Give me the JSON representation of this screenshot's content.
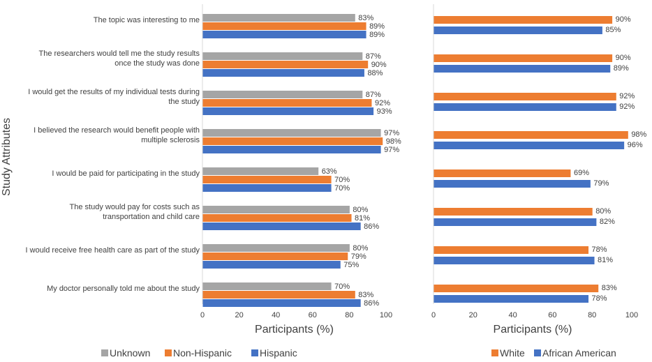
{
  "chart_data": {
    "type": "bar",
    "orientation": "horizontal",
    "ylabel": "Study Attributes",
    "colors": {
      "unknown": "#a5a5a5",
      "non_hispanic": "#ed7d31",
      "hispanic": "#4472c4",
      "white": "#ed7d31",
      "african_american": "#4472c4",
      "axis": "#d9d9d9",
      "text": "#404040"
    },
    "categories": [
      [
        "The topic was interesting to me"
      ],
      [
        "The researchers would tell me the study results",
        "once the study was done"
      ],
      [
        "I would get the results of my individual tests during",
        "the study"
      ],
      [
        "I believed the research would benefit people with",
        "multiple sclerosis"
      ],
      [
        "I would be paid for participating in the study"
      ],
      [
        "The study would pay for costs such as",
        "transportation and child care"
      ],
      [
        "I would receive free health care as part of the study"
      ],
      [
        "My doctor personally told me about the study"
      ]
    ],
    "panels": [
      {
        "xlabel": "Participants (%)",
        "xlim": [
          0,
          100
        ],
        "xticks": [
          "0",
          "20",
          "40",
          "60",
          "80",
          "100"
        ],
        "series": [
          {
            "name": "Unknown",
            "color_key": "unknown",
            "values": [
              83,
              87,
              87,
              97,
              63,
              80,
              80,
              70
            ],
            "labels": [
              "83%",
              "87%",
              "87%",
              "97%",
              "63%",
              "80%",
              "80%",
              "70%"
            ]
          },
          {
            "name": "Non-Hispanic",
            "color_key": "non_hispanic",
            "values": [
              89,
              90,
              92,
              98,
              70,
              81,
              79,
              83
            ],
            "labels": [
              "89%",
              "90%",
              "92%",
              "98%",
              "70%",
              "81%",
              "79%",
              "83%"
            ]
          },
          {
            "name": "Hispanic",
            "color_key": "hispanic",
            "values": [
              89,
              88,
              93,
              97,
              70,
              86,
              75,
              86
            ],
            "labels": [
              "89%",
              "88%",
              "93%",
              "97%",
              "70%",
              "86%",
              "75%",
              "86%"
            ]
          }
        ]
      },
      {
        "xlabel": "Participants (%)",
        "xlim": [
          0,
          100
        ],
        "xticks": [
          "0",
          "20",
          "40",
          "60",
          "80",
          "100"
        ],
        "series": [
          {
            "name": "White",
            "color_key": "white",
            "values": [
              90,
              90,
              92,
              98,
              69,
              80,
              78,
              83
            ],
            "labels": [
              "90%",
              "90%",
              "92%",
              "98%",
              "69%",
              "80%",
              "78%",
              "83%"
            ]
          },
          {
            "name": "African American",
            "color_key": "african_american",
            "values": [
              85,
              89,
              92,
              96,
              79,
              82,
              81,
              78
            ],
            "labels": [
              "85%",
              "89%",
              "92%",
              "96%",
              "79%",
              "82%",
              "81%",
              "78%"
            ]
          }
        ]
      }
    ]
  }
}
